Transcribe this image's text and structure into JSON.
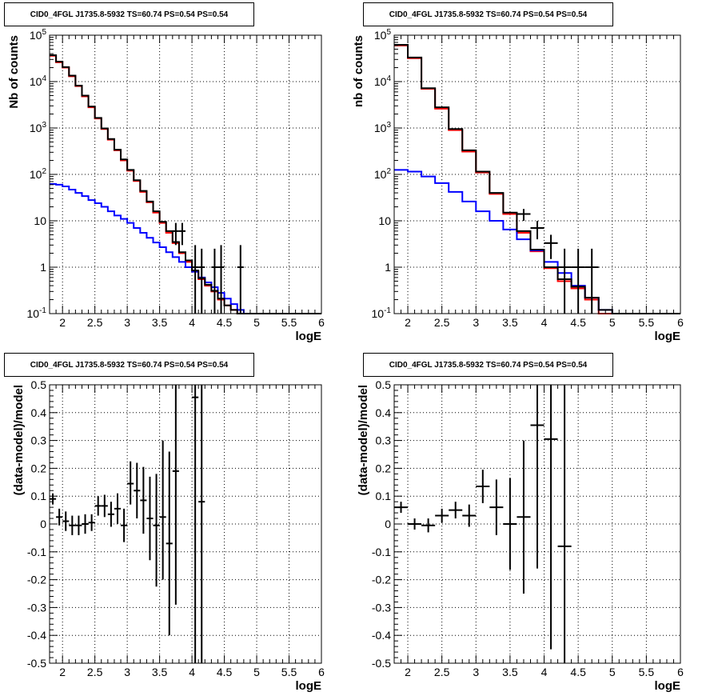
{
  "chart_data": [
    {
      "type": "step-histogram",
      "title": "CID0_4FGL J1735.8-5932 TS=60.74 PS=0.54 PS=0.54",
      "xlabel": "logE",
      "ylabel": "Nb of counts",
      "xlim": [
        1.8,
        6.0
      ],
      "ylim": [
        0.1,
        100000
      ],
      "yscale": "log",
      "grid": true,
      "xticks": [
        "2",
        "2.5",
        "3",
        "3.5",
        "4",
        "4.5",
        "5",
        "5.5",
        "6"
      ],
      "yticks": [
        "10^-1",
        "1",
        "10",
        "10^2",
        "10^3",
        "10^4",
        "10^5"
      ],
      "bin_edges": [
        1.8,
        1.9,
        2.0,
        2.1,
        2.2,
        2.3,
        2.4,
        2.5,
        2.6,
        2.7,
        2.8,
        2.9,
        3.0,
        3.1,
        3.2,
        3.3,
        3.4,
        3.5,
        3.6,
        3.7,
        3.8,
        3.9,
        4.0,
        4.1,
        4.2,
        4.3,
        4.4,
        4.5,
        4.6,
        4.7,
        4.8,
        4.9,
        5.0,
        5.1,
        5.2,
        5.3,
        5.4,
        5.5,
        5.6,
        5.7,
        5.8,
        5.9,
        6.0
      ],
      "series": [
        {
          "color": "#ff0000",
          "values": [
            36000,
            26000,
            20000,
            13000,
            8000,
            4800,
            2800,
            1600,
            950,
            560,
            330,
            200,
            120,
            72,
            42,
            25,
            15,
            9,
            5.5,
            3.3,
            2.0,
            1.3,
            0.8,
            0.55,
            0.4,
            0.3,
            0.2,
            0.15,
            0.12,
            0.1,
            0.1,
            0.1,
            0.1,
            0.1,
            0.1,
            0.1,
            0.1,
            0.1,
            0.1,
            0.1,
            0.1,
            0.1
          ]
        },
        {
          "color": "#0000ff",
          "values": [
            62,
            60,
            55,
            47,
            40,
            34,
            28,
            24,
            20,
            16,
            13,
            11,
            9,
            7,
            5.5,
            4.3,
            3.4,
            2.7,
            2.1,
            1.65,
            1.3,
            1.0,
            0.8,
            0.6,
            0.47,
            0.37,
            0.28,
            0.21,
            0.16,
            0.12,
            0.1,
            0.1,
            0.1,
            0.1,
            0.1,
            0.1,
            0.1,
            0.1,
            0.1,
            0.1,
            0.1,
            0.1
          ]
        },
        {
          "color": "#000000",
          "values": [
            37000,
            27000,
            20500,
            13500,
            8200,
            5000,
            2900,
            1650,
            980,
            580,
            340,
            210,
            125,
            75,
            44,
            26,
            16,
            9.5,
            6,
            3.5,
            2.1,
            1.4,
            0.85,
            0.58,
            0.42,
            0.31,
            0.21,
            0.15,
            0.12,
            0.1,
            0.1,
            0.1,
            0.1,
            0.1,
            0.1,
            0.1,
            0.1,
            0.1,
            0.1,
            0.1,
            0.1,
            0.1
          ]
        }
      ],
      "points": [
        {
          "x": 3.75,
          "y": 6,
          "xerr": 0.05,
          "ylo": 3,
          "yhi": 9
        },
        {
          "x": 3.85,
          "y": 6,
          "xerr": 0.05,
          "ylo": 3,
          "yhi": 9
        },
        {
          "x": 4.05,
          "y": 1,
          "xerr": 0.05,
          "ylo": 0.1,
          "yhi": 3
        },
        {
          "x": 4.15,
          "y": 1,
          "xerr": 0.05,
          "ylo": 0.1,
          "yhi": 2.5
        },
        {
          "x": 4.35,
          "y": 1,
          "xerr": 0.05,
          "ylo": 0.1,
          "yhi": 2.5
        },
        {
          "x": 4.45,
          "y": 1,
          "xerr": 0.05,
          "ylo": 0.1,
          "yhi": 3
        },
        {
          "x": 4.75,
          "y": 1,
          "xerr": 0.05,
          "ylo": 0.1,
          "yhi": 3
        }
      ]
    },
    {
      "type": "step-histogram",
      "title": "CID0_4FGL J1735.8-5932 TS=60.74 PS=0.54 PS=0.54",
      "xlabel": "logE",
      "ylabel": "nb of counts",
      "xlim": [
        1.8,
        6.0
      ],
      "ylim": [
        0.1,
        100000
      ],
      "yscale": "log",
      "grid": true,
      "xticks": [
        "2",
        "2.5",
        "3",
        "3.5",
        "4",
        "4.5",
        "5",
        "5.5",
        "6"
      ],
      "yticks": [
        "10^-1",
        "1",
        "10",
        "10^2",
        "10^3",
        "10^4",
        "10^5"
      ],
      "bin_edges": [
        1.8,
        2.0,
        2.2,
        2.4,
        2.6,
        2.8,
        3.0,
        3.2,
        3.4,
        3.6,
        3.8,
        4.0,
        4.2,
        4.4,
        4.6,
        4.8,
        5.0,
        5.2,
        5.4,
        5.6,
        5.8,
        6.0
      ],
      "series": [
        {
          "color": "#ff0000",
          "values": [
            60000,
            32000,
            7000,
            2600,
            900,
            310,
            110,
            38,
            14,
            5.5,
            2.2,
            0.95,
            0.5,
            0.35,
            0.2,
            0.1,
            0.1,
            0.1,
            0.1,
            0.1,
            0.1
          ]
        },
        {
          "color": "#0000ff",
          "values": [
            125,
            115,
            90,
            65,
            42,
            26,
            16,
            10,
            6.5,
            4.0,
            2.3,
            1.3,
            0.75,
            0.4,
            0.22,
            0.12,
            0.1,
            0.1,
            0.1,
            0.1,
            0.1
          ]
        },
        {
          "color": "#000000",
          "values": [
            62000,
            33000,
            7200,
            2800,
            950,
            330,
            115,
            40,
            15,
            6,
            2.4,
            1.0,
            0.55,
            0.38,
            0.22,
            0.12,
            0.1,
            0.1,
            0.1,
            0.1,
            0.1
          ]
        }
      ],
      "points": [
        {
          "x": 3.7,
          "y": 14,
          "xerr": 0.1,
          "ylo": 10,
          "yhi": 18
        },
        {
          "x": 3.9,
          "y": 7,
          "xerr": 0.1,
          "ylo": 4,
          "yhi": 10
        },
        {
          "x": 4.1,
          "y": 3.3,
          "xerr": 0.1,
          "ylo": 1.5,
          "yhi": 5
        },
        {
          "x": 4.3,
          "y": 1,
          "xerr": 0.1,
          "ylo": 0.1,
          "yhi": 2.5
        },
        {
          "x": 4.5,
          "y": 1,
          "xerr": 0.1,
          "ylo": 0.1,
          "yhi": 2.5
        },
        {
          "x": 4.7,
          "y": 1,
          "xerr": 0.1,
          "ylo": 0.1,
          "yhi": 2.5
        }
      ]
    },
    {
      "type": "scatter-errorbars",
      "title": "CID0_4FGL J1735.8-5932 TS=60.74 PS=0.54 PS=0.54",
      "xlabel": "logE",
      "ylabel": "(data-model)/model",
      "xlim": [
        1.8,
        6.0
      ],
      "ylim": [
        -0.5,
        0.5
      ],
      "grid": true,
      "xticks": [
        "2",
        "2.5",
        "3",
        "3.5",
        "4",
        "4.5",
        "5",
        "5.5",
        "6"
      ],
      "yticks": [
        "-0.5",
        "-0.4",
        "-0.3",
        "-0.2",
        "-0.1",
        "0",
        "0.1",
        "0.2",
        "0.3",
        "0.4",
        "0.5"
      ],
      "points": [
        {
          "x": 1.85,
          "y": 0.09,
          "xerr": 0.05,
          "ylo": 0.07,
          "yhi": 0.11
        },
        {
          "x": 1.95,
          "y": 0.025,
          "xerr": 0.05,
          "ylo": -0.005,
          "yhi": 0.055
        },
        {
          "x": 2.05,
          "y": 0.01,
          "xerr": 0.05,
          "ylo": -0.025,
          "yhi": 0.045
        },
        {
          "x": 2.15,
          "y": -0.005,
          "xerr": 0.05,
          "ylo": -0.04,
          "yhi": 0.03
        },
        {
          "x": 2.25,
          "y": -0.005,
          "xerr": 0.05,
          "ylo": -0.04,
          "yhi": 0.03
        },
        {
          "x": 2.35,
          "y": 0.0,
          "xerr": 0.05,
          "ylo": -0.035,
          "yhi": 0.035
        },
        {
          "x": 2.45,
          "y": 0.005,
          "xerr": 0.05,
          "ylo": -0.025,
          "yhi": 0.035
        },
        {
          "x": 2.55,
          "y": 0.065,
          "xerr": 0.05,
          "ylo": 0.03,
          "yhi": 0.1
        },
        {
          "x": 2.65,
          "y": 0.065,
          "xerr": 0.05,
          "ylo": 0.025,
          "yhi": 0.105
        },
        {
          "x": 2.75,
          "y": 0.035,
          "xerr": 0.05,
          "ylo": -0.01,
          "yhi": 0.08
        },
        {
          "x": 2.85,
          "y": 0.055,
          "xerr": 0.05,
          "ylo": 0.0,
          "yhi": 0.11
        },
        {
          "x": 2.95,
          "y": -0.005,
          "xerr": 0.05,
          "ylo": -0.065,
          "yhi": 0.055
        },
        {
          "x": 3.05,
          "y": 0.145,
          "xerr": 0.05,
          "ylo": 0.07,
          "yhi": 0.225
        },
        {
          "x": 3.15,
          "y": 0.12,
          "xerr": 0.05,
          "ylo": 0.02,
          "yhi": 0.22
        },
        {
          "x": 3.25,
          "y": 0.085,
          "xerr": 0.05,
          "ylo": -0.035,
          "yhi": 0.205
        },
        {
          "x": 3.35,
          "y": 0.02,
          "xerr": 0.05,
          "ylo": -0.13,
          "yhi": 0.17
        },
        {
          "x": 3.45,
          "y": -0.005,
          "xerr": 0.05,
          "ylo": -0.225,
          "yhi": 0.18
        },
        {
          "x": 3.55,
          "y": 0.025,
          "xerr": 0.05,
          "ylo": -0.2,
          "yhi": 0.3
        },
        {
          "x": 3.65,
          "y": -0.07,
          "xerr": 0.05,
          "ylo": -0.4,
          "yhi": 0.26
        },
        {
          "x": 3.75,
          "y": 0.19,
          "xerr": 0.05,
          "ylo": -0.29,
          "yhi": 0.5
        },
        {
          "x": 4.05,
          "y": 0.455,
          "xerr": 0.05,
          "ylo": -0.5,
          "yhi": 0.5
        },
        {
          "x": 4.15,
          "y": 0.08,
          "xerr": 0.05,
          "ylo": -0.5,
          "yhi": 0.5
        }
      ]
    },
    {
      "type": "scatter-errorbars",
      "title": "CID0_4FGL J1735.8-5932 TS=60.74 PS=0.54 PS=0.54",
      "xlabel": "logE",
      "ylabel": "(data-model)/model",
      "xlim": [
        1.8,
        6.0
      ],
      "ylim": [
        -0.5,
        0.5
      ],
      "grid": true,
      "xticks": [
        "2",
        "2.5",
        "3",
        "3.5",
        "4",
        "4.5",
        "5",
        "5.5",
        "6"
      ],
      "yticks": [
        "-0.5",
        "-0.4",
        "-0.3",
        "-0.2",
        "-0.1",
        "0",
        "0.1",
        "0.2",
        "0.3",
        "0.4",
        "0.5"
      ],
      "points": [
        {
          "x": 1.9,
          "y": 0.06,
          "xerr": 0.1,
          "ylo": 0.04,
          "yhi": 0.08
        },
        {
          "x": 2.1,
          "y": 0.0,
          "xerr": 0.1,
          "ylo": -0.02,
          "yhi": 0.02
        },
        {
          "x": 2.3,
          "y": -0.005,
          "xerr": 0.1,
          "ylo": -0.03,
          "yhi": 0.02
        },
        {
          "x": 2.5,
          "y": 0.03,
          "xerr": 0.1,
          "ylo": 0.005,
          "yhi": 0.055
        },
        {
          "x": 2.7,
          "y": 0.05,
          "xerr": 0.1,
          "ylo": 0.02,
          "yhi": 0.08
        },
        {
          "x": 2.9,
          "y": 0.03,
          "xerr": 0.1,
          "ylo": -0.01,
          "yhi": 0.07
        },
        {
          "x": 3.1,
          "y": 0.135,
          "xerr": 0.1,
          "ylo": 0.075,
          "yhi": 0.195
        },
        {
          "x": 3.3,
          "y": 0.06,
          "xerr": 0.1,
          "ylo": -0.04,
          "yhi": 0.16
        },
        {
          "x": 3.5,
          "y": 0.0,
          "xerr": 0.1,
          "ylo": -0.165,
          "yhi": 0.165
        },
        {
          "x": 3.7,
          "y": 0.025,
          "xerr": 0.1,
          "ylo": -0.25,
          "yhi": 0.3
        },
        {
          "x": 3.9,
          "y": 0.355,
          "xerr": 0.1,
          "ylo": -0.16,
          "yhi": 0.5
        },
        {
          "x": 4.1,
          "y": 0.305,
          "xerr": 0.1,
          "ylo": -0.45,
          "yhi": 0.5
        },
        {
          "x": 4.3,
          "y": -0.08,
          "xerr": 0.1,
          "ylo": -0.5,
          "yhi": 0.5
        }
      ]
    }
  ]
}
